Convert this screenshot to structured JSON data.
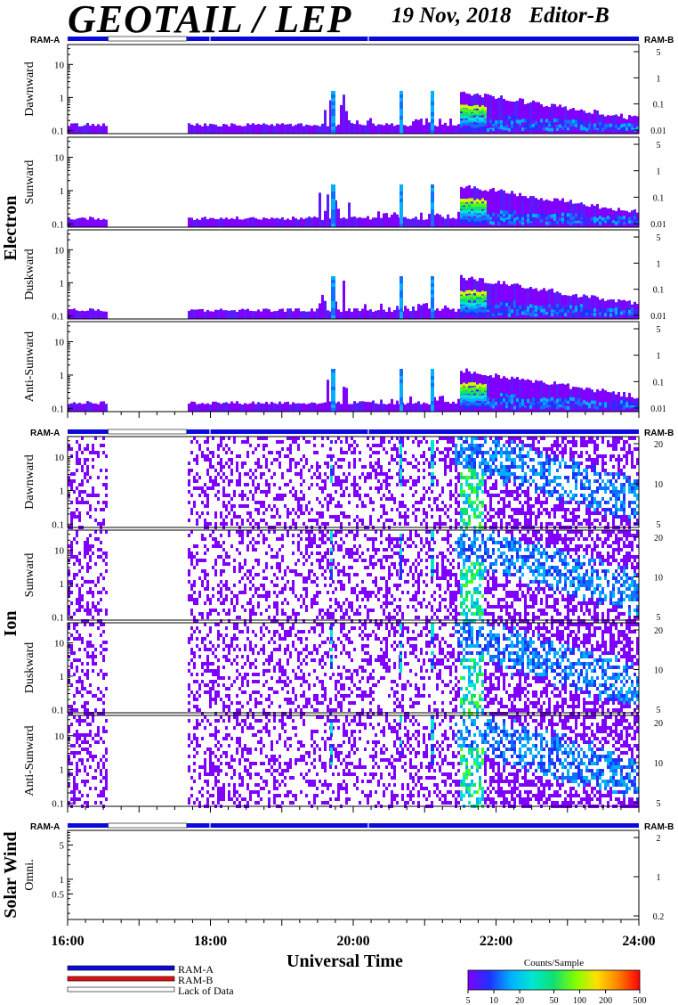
{
  "header": {
    "title": "GEOTAIL / LEP",
    "date": "19 Nov, 2018",
    "editor": "Editor-B"
  },
  "groups": {
    "electron": {
      "label": "Electron",
      "right_ticks": [
        "5",
        "1",
        "0.1",
        "0.01"
      ]
    },
    "ion": {
      "label": "Ion",
      "right_ticks": [
        "20",
        "10",
        "5"
      ]
    },
    "solar_wind": {
      "label": "Solar Wind",
      "right_ticks": [
        "2",
        "1",
        "0.2"
      ]
    }
  },
  "ram_labels": {
    "a": "RAM-A",
    "b": "RAM-B"
  },
  "legend": {
    "ram_a": "RAM-A",
    "ram_b": "RAM-B",
    "lack": "Lack of Data",
    "colors": {
      "ram_a": "#0a0adc",
      "ram_b": "#e01010",
      "lack": "#ffffff"
    }
  },
  "colorbar": {
    "title": "Counts/Sample",
    "ticks": [
      "5",
      "10",
      "20",
      "50",
      "100",
      "200",
      "500"
    ]
  },
  "chart_data": {
    "type": "heatmap",
    "x_range": [
      "16:00",
      "24:00"
    ],
    "x_ticks": [
      "16:00",
      "18:00",
      "20:00",
      "22:00",
      "24:00"
    ],
    "xlabel": "Universal Time",
    "no_data_interval": [
      "16:34",
      "17:40"
    ],
    "panels": [
      {
        "group": "Electron",
        "direction": "Dawnward",
        "ylim": [
          0.08,
          40
        ],
        "y_ticks": [
          "10",
          "1",
          "0.1"
        ]
      },
      {
        "group": "Electron",
        "direction": "Sunward",
        "ylim": [
          0.08,
          40
        ],
        "y_ticks": [
          "10",
          "1",
          "0.1"
        ]
      },
      {
        "group": "Electron",
        "direction": "Duskward",
        "ylim": [
          0.08,
          40
        ],
        "y_ticks": [
          "10",
          "1",
          "0.1"
        ]
      },
      {
        "group": "Electron",
        "direction": "Anti-Sunward",
        "ylim": [
          0.08,
          40
        ],
        "y_ticks": [
          "10",
          "1",
          "0.1"
        ]
      },
      {
        "group": "Ion",
        "direction": "Dawnward",
        "ylim": [
          0.08,
          40
        ],
        "y_ticks": [
          "10",
          "1",
          "0.1"
        ]
      },
      {
        "group": "Ion",
        "direction": "Sunward",
        "ylim": [
          0.08,
          40
        ],
        "y_ticks": [
          "10",
          "1",
          "0.1"
        ]
      },
      {
        "group": "Ion",
        "direction": "Duskward",
        "ylim": [
          0.08,
          40
        ],
        "y_ticks": [
          "10",
          "1",
          "0.1"
        ]
      },
      {
        "group": "Ion",
        "direction": "Anti-Sunward",
        "ylim": [
          0.08,
          40
        ],
        "y_ticks": [
          "10",
          "1",
          "0.1"
        ]
      },
      {
        "group": "Solar Wind",
        "direction": "Omni.",
        "ylim": [
          0.15,
          10
        ],
        "y_ticks": [
          "5",
          "1",
          "0.5"
        ]
      }
    ],
    "colorscale": {
      "label": "Counts/Sample",
      "range": [
        5,
        500
      ]
    }
  },
  "colors": {
    "ram_a": "#0a0adc",
    "ram_b": "#e01010"
  }
}
